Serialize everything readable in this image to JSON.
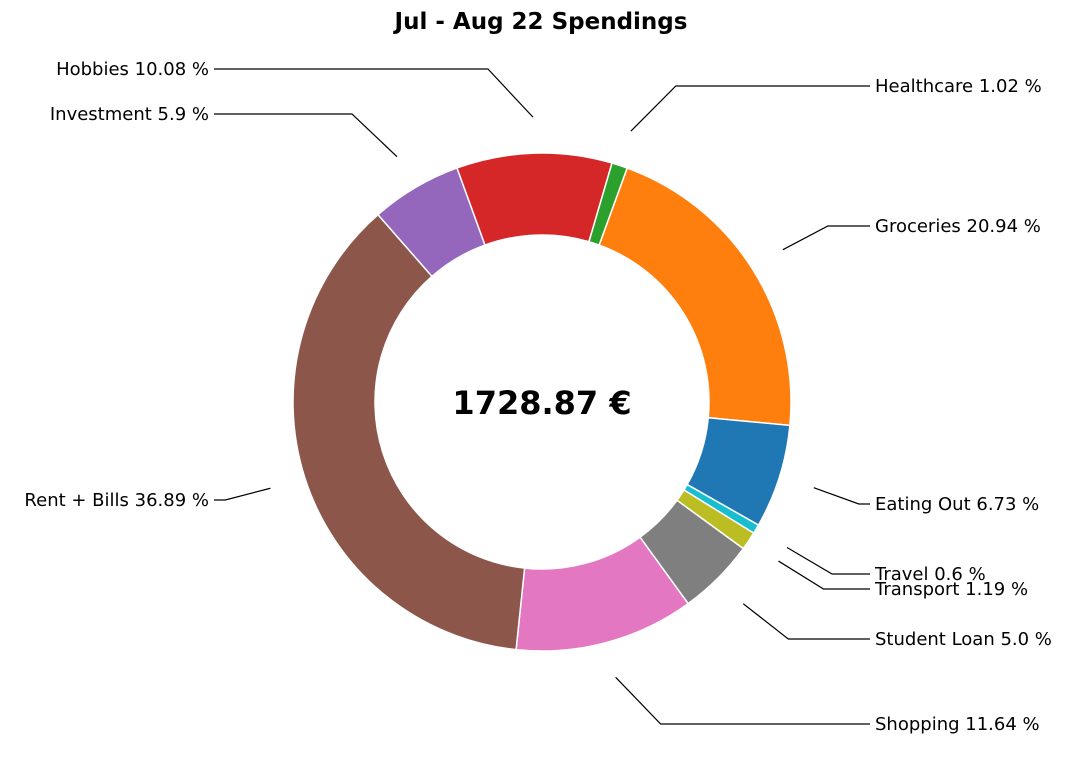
{
  "chart_data": {
    "type": "pie",
    "title": "Jul - Aug 22 Spendings",
    "center_text": "1728.87 €",
    "slices": [
      {
        "label": "Groceries",
        "value": 20.94,
        "text": "Groceries 20.94 %",
        "color": "#ff7f0e"
      },
      {
        "label": "Eating Out",
        "value": 6.73,
        "text": "Eating Out 6.73 %",
        "color": "#1f77b4"
      },
      {
        "label": "Travel",
        "value": 0.6,
        "text": "Travel 0.6 %",
        "color": "#17becf"
      },
      {
        "label": "Transport",
        "value": 1.19,
        "text": "Transport 1.19 %",
        "color": "#bcbd22"
      },
      {
        "label": "Student Loan",
        "value": 5.0,
        "text": "Student Loan 5.0 %",
        "color": "#7f7f7f"
      },
      {
        "label": "Shopping",
        "value": 11.64,
        "text": "Shopping 11.64 %",
        "color": "#e377c2"
      },
      {
        "label": "Rent + Bills",
        "value": 36.89,
        "text": "Rent + Bills 36.89 %",
        "color": "#8c564b"
      },
      {
        "label": "Investment",
        "value": 5.9,
        "text": "Investment 5.9 %",
        "color": "#9467bd"
      },
      {
        "label": "Hobbies",
        "value": 10.08,
        "text": "Hobbies 10.08 %",
        "color": "#d62728"
      },
      {
        "label": "Healthcare",
        "value": 1.02,
        "text": "Healthcare 1.02 %",
        "color": "#2ca02c"
      }
    ]
  }
}
